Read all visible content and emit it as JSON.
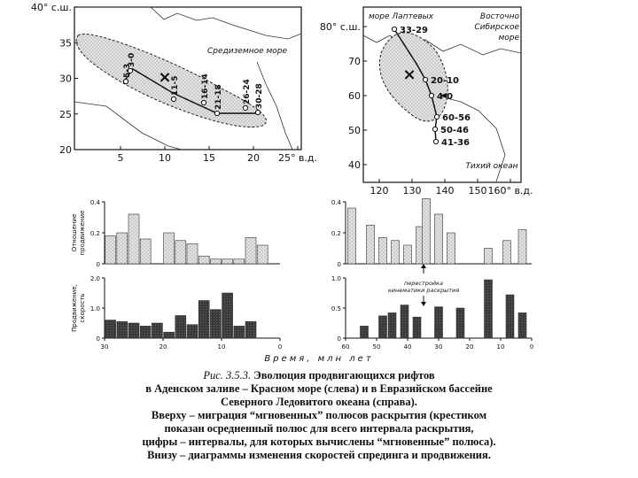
{
  "caption": {
    "label": "Рис. 3.5.3.",
    "title_lines": [
      "Эволюция продвигающихся рифтов",
      "в Аденском заливе – Красном море (слева) и в Евразийском бассейне",
      "Северного Ледовитого океана (справа)."
    ],
    "body_lines": [
      "Вверху – миграция “мгновенных” полюсов раскрытия (крестиком",
      "показан осредненный полюс для всего интервала раскрытия,",
      "цифры – интервалы, для которых вычислены “мгновенные” полюса).",
      "Внизу – диаграммы изменения скоростей спрединга и продвижения."
    ]
  },
  "chart_data": [
    {
      "type": "map",
      "region": "Aden – Red Sea",
      "x_ticks": [
        "5",
        "10",
        "15",
        "20",
        "25° в.д."
      ],
      "y_ticks": [
        "40° с.ш.",
        "35",
        "30",
        "25",
        "20"
      ],
      "xlim": [
        0,
        25
      ],
      "ylim": [
        20,
        40
      ],
      "sea_label": "Средиземное море",
      "pole_labels": [
        "3-0",
        "5-3",
        "11-5",
        "16-14",
        "21-18",
        "26-24",
        "30-28"
      ],
      "mean_pole": [
        9.5,
        30
      ]
    },
    {
      "type": "map",
      "region": "Eurasian Basin",
      "x_ticks": [
        "120",
        "130",
        "140",
        "150",
        "160° в.д."
      ],
      "y_ticks": [
        "80° с.ш.",
        "70",
        "60",
        "50",
        "40"
      ],
      "xlim": [
        115,
        165
      ],
      "ylim": [
        35,
        85
      ],
      "labels": [
        "море Лаптевых",
        "Восточно Сибирское море",
        "Тихий океан"
      ],
      "pole_labels": [
        "33-29",
        "20-10",
        "4-0",
        "60-56",
        "50-46",
        "41-36"
      ],
      "mean_pole": [
        130,
        66
      ]
    },
    {
      "type": "bar",
      "panel": "left-top",
      "ylabel": [
        "Отношение",
        "продвижение"
      ],
      "y_ticks": [
        "0.4",
        "0.2",
        "0"
      ],
      "ylim": [
        0,
        0.4
      ],
      "series": [
        {
          "x": [
            29,
            27,
            25,
            23,
            19,
            17,
            15,
            13,
            11,
            9,
            7,
            5,
            3,
            1
          ],
          "values": [
            0.18,
            0.2,
            0.32,
            0.16,
            0.2,
            0.15,
            0.13,
            0.05,
            0.03,
            0.03,
            0.03,
            0.17,
            0.12,
            0
          ]
        }
      ]
    },
    {
      "type": "bar",
      "panel": "left-bottom",
      "ylabel": [
        "Продвижение,",
        "скорость"
      ],
      "y_ticks": [
        "2.0",
        "1.0",
        "0"
      ],
      "x_ticks": [
        "30",
        "20",
        "10",
        "0"
      ],
      "xlim": [
        30,
        0
      ],
      "ylim": [
        0,
        2
      ],
      "series": [
        {
          "x": [
            29,
            27,
            25,
            23,
            21,
            19,
            17,
            15,
            13,
            11,
            9,
            7,
            5,
            3
          ],
          "values": [
            0.6,
            0.55,
            0.5,
            0.4,
            0.5,
            0.2,
            0.75,
            0.45,
            1.25,
            0.95,
            1.5,
            0.4,
            0.55,
            0
          ]
        }
      ]
    },
    {
      "type": "bar",
      "panel": "right-top",
      "y_ticks": [
        "0.4",
        "0.2",
        "0"
      ],
      "ylim": [
        0,
        0.4
      ],
      "series": [
        {
          "x": [
            58,
            52,
            48,
            44,
            40,
            36,
            34,
            30,
            26,
            14,
            8,
            3
          ],
          "values": [
            0.36,
            0.25,
            0.17,
            0.15,
            0.12,
            0.24,
            0.42,
            0.32,
            0.2,
            0.1,
            0.15,
            0.22
          ]
        }
      ]
    },
    {
      "type": "bar",
      "panel": "right-bottom",
      "y_ticks": [
        "1.0",
        "0.5",
        "0"
      ],
      "x_ticks": [
        "60",
        "50",
        "40",
        "30",
        "20",
        "10",
        "0"
      ],
      "xlim": [
        60,
        0
      ],
      "ylim": [
        0,
        1
      ],
      "series": [
        {
          "x": [
            54,
            48,
            45,
            41,
            37,
            30,
            23,
            14,
            7,
            3
          ],
          "values": [
            0.2,
            0.37,
            0.42,
            0.55,
            0.35,
            0.52,
            0.5,
            0.97,
            0.72,
            0.42
          ]
        }
      ],
      "annotation": [
        "перестройка",
        "кинематики раскрытия"
      ]
    }
  ],
  "shared": {
    "xlabel": "Время, млн лет"
  }
}
